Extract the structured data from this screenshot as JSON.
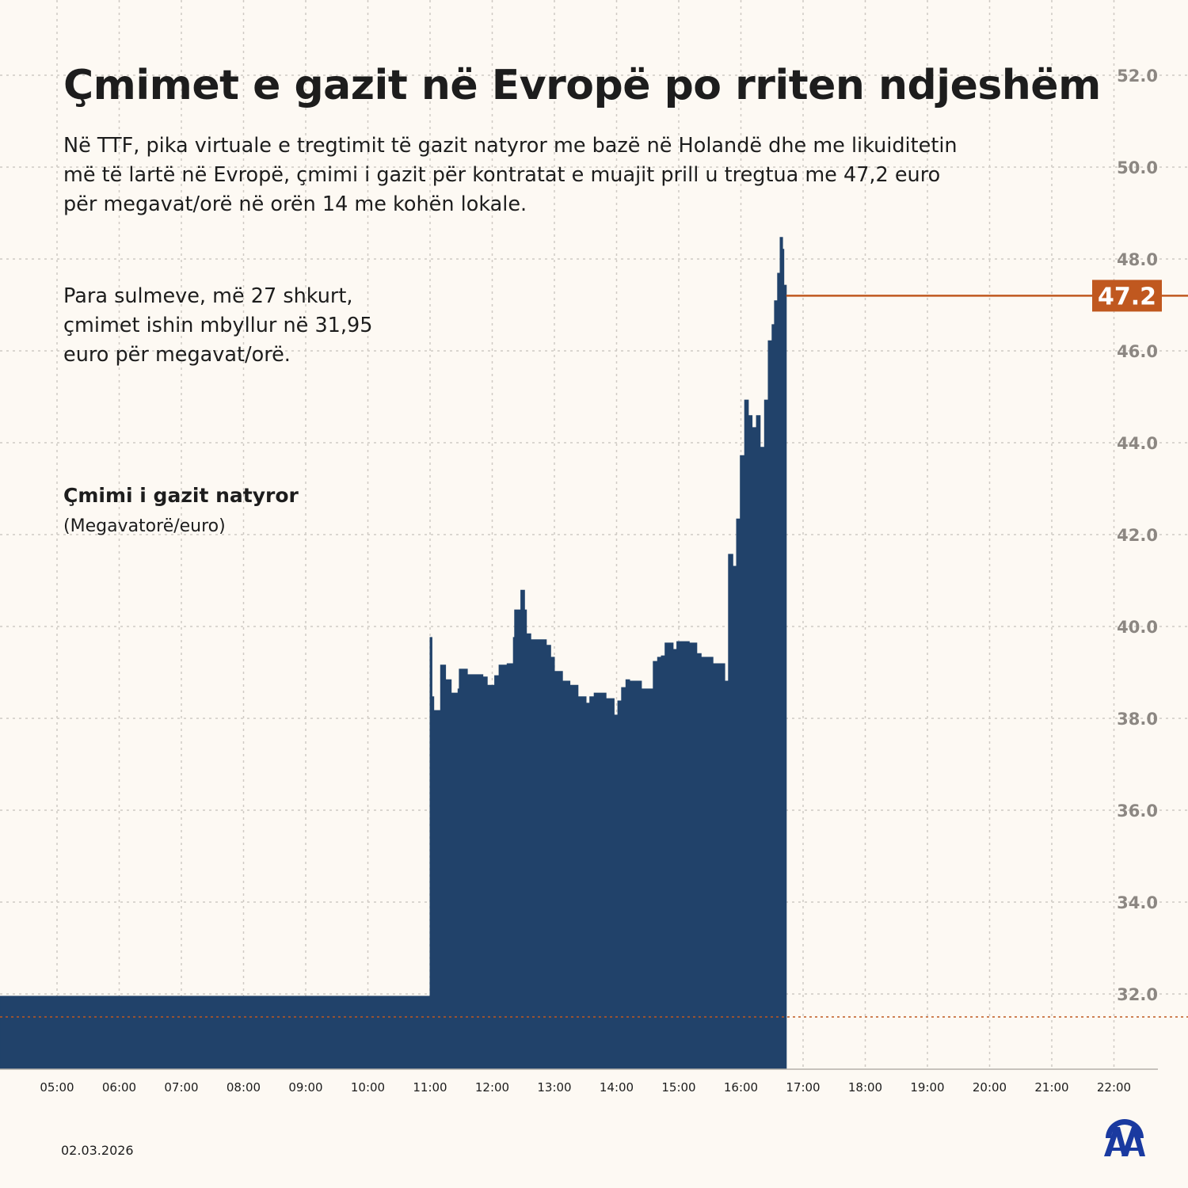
{
  "title": "Çmimet e gazit në Evropë po rriten ndjeshëm",
  "paragraph1": "Në TTF, pika virtuale e tregtimit të gazit natyror me bazë në Holandë dhe me likuiditetin më të lartë në Evropë, çmimi i gazit për kontratat e muajit prill u tregtua me 47,2 euro për megavat/orë në orën 14 me kohën lokale.",
  "paragraph2": "Para sulmeve, më 27 shkurt, çmimet ishin mbyllur në 31,95 euro për megavat/orë.",
  "series_label": "Çmimi i gazit natyror",
  "series_unit": "(Megavatorë/euro)",
  "date": "02.03.2026",
  "logo_text": "AA",
  "colors": {
    "bar": "#21426a",
    "accent": "#c0581f",
    "grid": "#cfcac4",
    "tick": "#8c8782",
    "background": "#fdf9f3",
    "logo": "#1a3aa0"
  },
  "chart_data": {
    "type": "area",
    "title": "Çmimi i gazit natyror",
    "ylabel": "(Megavatorë/euro)",
    "xlabel": "",
    "ylim": [
      30.45,
      52.0
    ],
    "xlim": [
      4.08,
      22.75
    ],
    "yticks": [
      52.0,
      50.0,
      48.0,
      46.0,
      44.0,
      42.0,
      40.0,
      38.0,
      36.0,
      34.0,
      32.0
    ],
    "ytick_labels": [
      "52.0",
      "50.0",
      "48.0",
      "46.0",
      "44.0",
      "42.0",
      "40.0",
      "38.0",
      "36.0",
      "34.0",
      "32.0"
    ],
    "xticks": [
      5,
      6,
      7,
      8,
      9,
      10,
      11,
      12,
      13,
      14,
      15,
      16,
      17,
      18,
      19,
      20,
      21,
      22
    ],
    "xtick_labels": [
      "05:00",
      "06:00",
      "07:00",
      "08:00",
      "09:00",
      "10:00",
      "11:00",
      "12:00",
      "13:00",
      "14:00",
      "15:00",
      "16:00",
      "17:00",
      "18:00",
      "19:00",
      "20:00",
      "21:00",
      "22:00"
    ],
    "grid": true,
    "last_value": 47.2,
    "last_value_label": "47.2",
    "reference_line": 31.5,
    "x": [
      4.08,
      11.0,
      11.0,
      11.03,
      11.06,
      11.17,
      11.25,
      11.34,
      11.45,
      11.47,
      11.6,
      11.85,
      11.92,
      12.04,
      12.11,
      12.24,
      12.34,
      12.36,
      12.46,
      12.52,
      12.55,
      12.62,
      12.87,
      12.94,
      13.0,
      13.13,
      13.25,
      13.38,
      13.51,
      13.57,
      13.64,
      13.7,
      13.83,
      13.96,
      14.02,
      14.08,
      14.15,
      14.21,
      14.4,
      14.59,
      14.66,
      14.72,
      14.78,
      14.91,
      14.97,
      15.17,
      15.29,
      15.36,
      15.55,
      15.74,
      15.8,
      15.87,
      15.93,
      15.99,
      16.06,
      16.12,
      16.18,
      16.25,
      16.31,
      16.38,
      16.44,
      16.5,
      16.54,
      16.59,
      16.63,
      16.67,
      16.69,
      16.73
    ],
    "values": [
      31.95,
      31.95,
      39.76,
      38.47,
      38.17,
      39.16,
      38.84,
      38.55,
      38.64,
      39.07,
      38.95,
      38.9,
      38.72,
      38.93,
      39.16,
      39.19,
      39.76,
      40.36,
      40.79,
      40.36,
      39.84,
      39.71,
      39.59,
      39.33,
      39.02,
      38.81,
      38.72,
      38.47,
      38.33,
      38.47,
      38.55,
      38.55,
      38.43,
      38.07,
      38.38,
      38.67,
      38.84,
      38.81,
      38.64,
      39.24,
      39.33,
      39.36,
      39.64,
      39.5,
      39.67,
      39.64,
      39.41,
      39.33,
      39.19,
      38.81,
      41.57,
      41.31,
      42.34,
      43.72,
      44.93,
      44.59,
      44.33,
      44.59,
      43.9,
      44.93,
      46.22,
      46.57,
      47.09,
      47.69,
      48.47,
      48.21,
      47.43,
      47.2
    ]
  }
}
